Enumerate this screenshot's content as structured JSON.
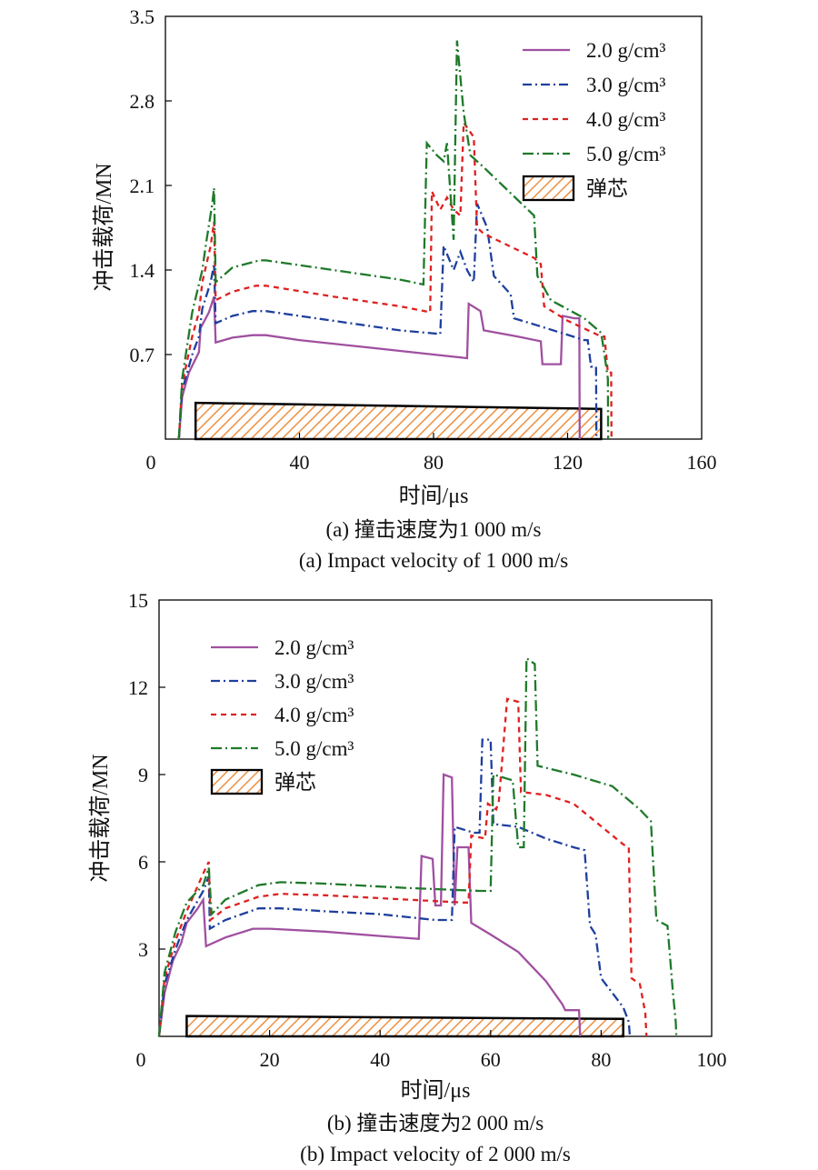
{
  "chart_data": [
    {
      "type": "line",
      "xlabel": "时间/μs",
      "ylabel": "冲击载荷/MN",
      "xlim": [
        0,
        160
      ],
      "ylim": [
        0,
        3.5
      ],
      "xticks": [
        0,
        40,
        80,
        120,
        160
      ],
      "yticks": [
        0.7,
        1.4,
        2.1,
        2.8,
        3.5
      ],
      "origin_label": "0",
      "caption_zh": "(a) 撞击速度为1 000 m/s",
      "caption_en": "(a) Impact velocity of 1 000 m/s",
      "legend_position": "top-right",
      "series": [
        {
          "name": "2.0 g/cm³",
          "color": "#a050a0",
          "dash": "solid",
          "points": [
            [
              4,
              0
            ],
            [
              5,
              0.35
            ],
            [
              7,
              0.55
            ],
            [
              10,
              0.72
            ],
            [
              10.5,
              0.92
            ],
            [
              13,
              1.05
            ],
            [
              14.5,
              1.18
            ],
            [
              15,
              0.8
            ],
            [
              20,
              0.84
            ],
            [
              26,
              0.86
            ],
            [
              30,
              0.86
            ],
            [
              40,
              0.82
            ],
            [
              60,
              0.76
            ],
            [
              80,
              0.7
            ],
            [
              90,
              0.67
            ],
            [
              90.5,
              1.12
            ],
            [
              94,
              1.06
            ],
            [
              95,
              0.9
            ],
            [
              105,
              0.85
            ],
            [
              112,
              0.81
            ],
            [
              112.5,
              0.62
            ],
            [
              118,
              0.62
            ],
            [
              118.5,
              1.02
            ],
            [
              122,
              1.0
            ],
            [
              123.5,
              1.0
            ],
            [
              123.6,
              0
            ]
          ]
        },
        {
          "name": "3.0 g/cm³",
          "color": "#1e3f9e",
          "dash": "10,4,2,4",
          "points": [
            [
              4,
              0
            ],
            [
              5,
              0.4
            ],
            [
              8,
              0.7
            ],
            [
              10,
              0.85
            ],
            [
              11,
              1.08
            ],
            [
              13.5,
              1.3
            ],
            [
              14.5,
              1.45
            ],
            [
              15,
              0.96
            ],
            [
              20,
              1.02
            ],
            [
              26,
              1.06
            ],
            [
              30,
              1.06
            ],
            [
              50,
              0.98
            ],
            [
              70,
              0.9
            ],
            [
              82,
              0.87
            ],
            [
              83,
              1.6
            ],
            [
              86,
              1.4
            ],
            [
              88,
              1.55
            ],
            [
              90,
              1.4
            ],
            [
              92,
              1.3
            ],
            [
              93,
              1.95
            ],
            [
              96,
              1.75
            ],
            [
              98,
              1.35
            ],
            [
              103,
              1.2
            ],
            [
              104,
              1.0
            ],
            [
              110,
              0.95
            ],
            [
              125,
              0.82
            ],
            [
              126,
              0.82
            ],
            [
              127,
              0.6
            ],
            [
              128.5,
              0.6
            ],
            [
              128.6,
              0
            ]
          ]
        },
        {
          "name": "4.0 g/cm³",
          "color": "#e02020",
          "dash": "6,5",
          "points": [
            [
              4,
              0
            ],
            [
              5,
              0.45
            ],
            [
              8,
              0.85
            ],
            [
              10,
              1.05
            ],
            [
              11,
              1.3
            ],
            [
              13.5,
              1.6
            ],
            [
              14.5,
              1.8
            ],
            [
              15,
              1.15
            ],
            [
              20,
              1.22
            ],
            [
              27,
              1.27
            ],
            [
              30,
              1.27
            ],
            [
              50,
              1.18
            ],
            [
              70,
              1.1
            ],
            [
              79,
              1.05
            ],
            [
              79.5,
              2.05
            ],
            [
              82,
              1.9
            ],
            [
              84,
              2.0
            ],
            [
              86,
              1.9
            ],
            [
              88,
              1.85
            ],
            [
              89,
              2.62
            ],
            [
              92,
              2.5
            ],
            [
              93,
              1.75
            ],
            [
              95,
              1.7
            ],
            [
              110,
              1.5
            ],
            [
              112,
              1.45
            ],
            [
              113,
              1.1
            ],
            [
              120,
              0.98
            ],
            [
              130,
              0.85
            ],
            [
              131,
              0.85
            ],
            [
              132,
              0.55
            ],
            [
              133,
              0.55
            ],
            [
              133.1,
              0
            ]
          ]
        },
        {
          "name": "5.0 g/cm³",
          "color": "#1f7a2a",
          "dash": "12,4,2,4",
          "points": [
            [
              4,
              0
            ],
            [
              5,
              0.5
            ],
            [
              8,
              1.05
            ],
            [
              11,
              1.4
            ],
            [
              12,
              1.6
            ],
            [
              14,
              1.95
            ],
            [
              14.5,
              2.08
            ],
            [
              15,
              1.3
            ],
            [
              20,
              1.42
            ],
            [
              28,
              1.48
            ],
            [
              30,
              1.48
            ],
            [
              50,
              1.4
            ],
            [
              70,
              1.32
            ],
            [
              77,
              1.28
            ],
            [
              78,
              2.45
            ],
            [
              81,
              2.35
            ],
            [
              83,
              2.3
            ],
            [
              84,
              2.45
            ],
            [
              86,
              1.65
            ],
            [
              87,
              3.3
            ],
            [
              89,
              2.7
            ],
            [
              91,
              2.35
            ],
            [
              95,
              2.25
            ],
            [
              110,
              1.85
            ],
            [
              111,
              1.35
            ],
            [
              115,
              1.15
            ],
            [
              125,
              1.0
            ],
            [
              130,
              0.88
            ],
            [
              131,
              0.7
            ],
            [
              132,
              0.5
            ],
            [
              132.1,
              0
            ]
          ]
        }
      ],
      "core": {
        "name": "弹芯",
        "fill": "#f0a050",
        "points": [
          [
            9,
            0
          ],
          [
            9,
            0.3
          ],
          [
            130,
            0.25
          ],
          [
            130,
            0
          ]
        ]
      }
    },
    {
      "type": "line",
      "xlabel": "时间/μs",
      "ylabel": "冲击载荷/MN",
      "xlim": [
        0,
        100
      ],
      "ylim": [
        0,
        15
      ],
      "xticks": [
        20,
        40,
        60,
        80,
        100
      ],
      "yticks": [
        3,
        6,
        9,
        12,
        15
      ],
      "origin_label": "0",
      "caption_zh": "(b) 撞击速度为2 000 m/s",
      "caption_en": "(b) Impact velocity of 2 000 m/s",
      "legend_position": "top-left",
      "series": [
        {
          "name": "2.0 g/cm³",
          "color": "#a050a0",
          "dash": "solid",
          "points": [
            [
              0,
              0
            ],
            [
              1,
              1.5
            ],
            [
              2.5,
              2.6
            ],
            [
              4,
              3.2
            ],
            [
              5,
              3.9
            ],
            [
              7,
              4.4
            ],
            [
              8,
              4.7
            ],
            [
              8.5,
              3.1
            ],
            [
              12,
              3.4
            ],
            [
              17,
              3.7
            ],
            [
              20,
              3.7
            ],
            [
              30,
              3.6
            ],
            [
              40,
              3.45
            ],
            [
              47,
              3.35
            ],
            [
              47.5,
              6.2
            ],
            [
              49.5,
              6.1
            ],
            [
              50,
              4.5
            ],
            [
              51,
              4.5
            ],
            [
              51.5,
              9.0
            ],
            [
              53,
              8.9
            ],
            [
              53.5,
              4.5
            ],
            [
              54,
              6.5
            ],
            [
              56,
              6.5
            ],
            [
              56.5,
              3.9
            ],
            [
              60,
              3.5
            ],
            [
              65,
              2.9
            ],
            [
              70,
              1.9
            ],
            [
              73,
              1.1
            ],
            [
              73.5,
              0.9
            ],
            [
              76,
              0.9
            ],
            [
              76.2,
              0
            ]
          ]
        },
        {
          "name": "3.0 g/cm³",
          "color": "#1e3f9e",
          "dash": "10,4,2,4",
          "points": [
            [
              0,
              0
            ],
            [
              1,
              1.8
            ],
            [
              3,
              3.0
            ],
            [
              5,
              4.0
            ],
            [
              8,
              5.0
            ],
            [
              9,
              5.5
            ],
            [
              9.2,
              3.7
            ],
            [
              12,
              4.0
            ],
            [
              18,
              4.4
            ],
            [
              22,
              4.4
            ],
            [
              30,
              4.3
            ],
            [
              40,
              4.2
            ],
            [
              50,
              4.0
            ],
            [
              53,
              4.0
            ],
            [
              53.5,
              7.2
            ],
            [
              57,
              7.0
            ],
            [
              58,
              7.0
            ],
            [
              58.5,
              10.2
            ],
            [
              60,
              10.2
            ],
            [
              60.5,
              7.3
            ],
            [
              65,
              7.2
            ],
            [
              70,
              6.8
            ],
            [
              75,
              6.5
            ],
            [
              77,
              6.4
            ],
            [
              78,
              3.8
            ],
            [
              79,
              3.5
            ],
            [
              80,
              2.0
            ],
            [
              84,
              1.0
            ],
            [
              85,
              0.5
            ],
            [
              85.2,
              0
            ]
          ]
        },
        {
          "name": "4.0 g/cm³",
          "color": "#e02020",
          "dash": "6,5",
          "points": [
            [
              0,
              0
            ],
            [
              1,
              2.0
            ],
            [
              3,
              3.3
            ],
            [
              5,
              4.3
            ],
            [
              8,
              5.6
            ],
            [
              9,
              6.0
            ],
            [
              9.3,
              4.0
            ],
            [
              12,
              4.4
            ],
            [
              18,
              4.8
            ],
            [
              22,
              4.9
            ],
            [
              30,
              4.85
            ],
            [
              45,
              4.7
            ],
            [
              55,
              4.6
            ],
            [
              56,
              4.6
            ],
            [
              56.5,
              6.9
            ],
            [
              59,
              6.8
            ],
            [
              59.5,
              8.0
            ],
            [
              61,
              7.8
            ],
            [
              61.5,
              8.1
            ],
            [
              63,
              11.6
            ],
            [
              65,
              11.5
            ],
            [
              65.5,
              8.4
            ],
            [
              70,
              8.3
            ],
            [
              75,
              8.0
            ],
            [
              84,
              6.6
            ],
            [
              85,
              6.5
            ],
            [
              85.5,
              2.0
            ],
            [
              87,
              1.8
            ],
            [
              88,
              0.8
            ],
            [
              88.2,
              0
            ]
          ]
        },
        {
          "name": "5.0 g/cm³",
          "color": "#1f7a2a",
          "dash": "12,4,2,4",
          "points": [
            [
              0,
              0
            ],
            [
              1,
              2.2
            ],
            [
              3,
              3.6
            ],
            [
              5,
              4.6
            ],
            [
              8,
              5.2
            ],
            [
              9,
              5.8
            ],
            [
              9.5,
              4.2
            ],
            [
              12,
              4.7
            ],
            [
              18,
              5.2
            ],
            [
              22,
              5.3
            ],
            [
              30,
              5.25
            ],
            [
              45,
              5.1
            ],
            [
              58,
              5.0
            ],
            [
              60,
              5.0
            ],
            [
              60.5,
              9.0
            ],
            [
              64,
              8.8
            ],
            [
              65,
              6.5
            ],
            [
              66,
              6.5
            ],
            [
              66.5,
              13.0
            ],
            [
              68,
              12.8
            ],
            [
              68.5,
              9.3
            ],
            [
              75,
              9.0
            ],
            [
              82,
              8.6
            ],
            [
              87,
              7.8
            ],
            [
              89,
              7.4
            ],
            [
              90,
              4.0
            ],
            [
              92,
              3.8
            ],
            [
              93,
              1.5
            ],
            [
              93.5,
              0.5
            ],
            [
              93.6,
              0
            ]
          ]
        }
      ],
      "core": {
        "name": "弹芯",
        "fill": "#f0a050",
        "points": [
          [
            5,
            0
          ],
          [
            5,
            0.7
          ],
          [
            84,
            0.6
          ],
          [
            84,
            0
          ]
        ]
      }
    }
  ]
}
